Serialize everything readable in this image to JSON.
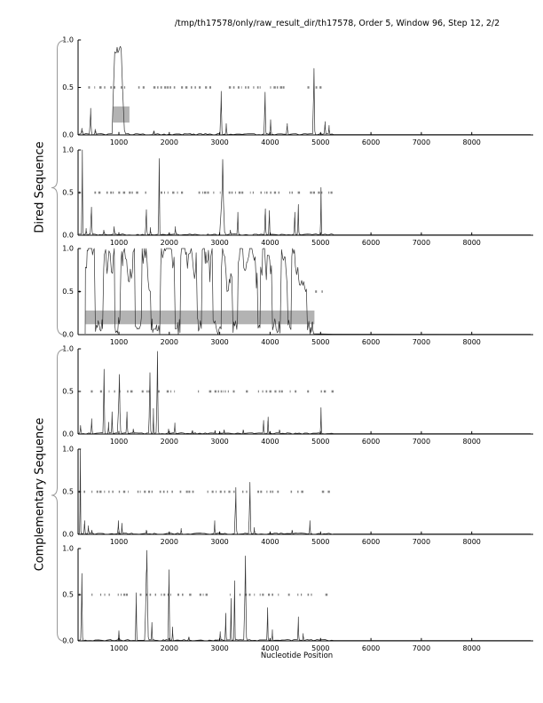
{
  "page": {
    "title": "/tmp/th17578/only/raw_result_dir/th17578, Order 5, Window 96, Step 12, 2/2"
  },
  "axes": {
    "xlabel": "Nucleotide Position",
    "x_ticks": [
      1000,
      2000,
      3000,
      4000,
      5000,
      6000,
      7000,
      8000
    ],
    "y_ticks": [
      "0.0",
      "0.5",
      "1.0"
    ]
  },
  "groups": [
    {
      "label": "Dired Sequence",
      "panels": [
        1,
        2,
        3
      ]
    },
    {
      "label": "Complementary Sequence",
      "panels": [
        4,
        5,
        6
      ]
    }
  ],
  "colors": {
    "line": "#333333",
    "marker_row": "#858585",
    "highlight_band": "#b3b3b3",
    "axis": "#000000",
    "brace": "#999999"
  },
  "chart_data": {
    "type": "line",
    "title": "/tmp/th17578/only/raw_result_dir/th17578, Order 5, Window 96, Step 12, 2/2",
    "xlabel": "Nucleotide Position",
    "xlim": [
      190,
      9220
    ],
    "ylim": [
      0,
      1
    ],
    "grid": false,
    "marker_row_y": 0.5,
    "marker_row_range": [
      205,
      5230
    ],
    "data_end": 5250,
    "panels": [
      {
        "name": "dired-1",
        "peaks": [
          [
            265,
            0.07,
            22
          ],
          [
            440,
            0.28,
            26
          ],
          [
            530,
            0.06,
            18
          ],
          [
            1000,
            0.95,
            135,
            "plateau"
          ],
          [
            1690,
            0.04,
            16
          ],
          [
            3030,
            0.46,
            26
          ],
          [
            3130,
            0.12,
            18
          ],
          [
            3900,
            0.45,
            24
          ],
          [
            4010,
            0.16,
            20
          ],
          [
            4340,
            0.12,
            20
          ],
          [
            4870,
            0.7,
            28
          ],
          [
            5090,
            0.14,
            18
          ],
          [
            5170,
            0.1,
            16
          ]
        ],
        "highlight": {
          "x0": 880,
          "x1": 1210,
          "y0": 0.13,
          "y1": 0.3
        }
      },
      {
        "name": "dired-2",
        "peaks": [
          [
            275,
            1.0,
            20
          ],
          [
            350,
            0.08,
            16
          ],
          [
            455,
            0.33,
            26
          ],
          [
            700,
            0.06,
            16
          ],
          [
            905,
            0.1,
            18
          ],
          [
            1545,
            0.3,
            24
          ],
          [
            1625,
            0.09,
            14
          ],
          [
            1800,
            0.9,
            22
          ],
          [
            2120,
            0.1,
            16
          ],
          [
            3060,
            0.89,
            60
          ],
          [
            3210,
            0.06,
            14
          ],
          [
            3360,
            0.27,
            20
          ],
          [
            3905,
            0.31,
            22
          ],
          [
            3985,
            0.29,
            18
          ],
          [
            4490,
            0.27,
            20
          ],
          [
            4560,
            0.36,
            20
          ],
          [
            5010,
            0.56,
            18
          ]
        ]
      },
      {
        "name": "dired-3",
        "dense_region": [
          330,
          4850
        ],
        "dense_range": [
          0,
          1
        ],
        "marker_gap": [
          335,
          4880
        ],
        "highlight": {
          "x0": 340,
          "x1": 4880,
          "y0": 0.12,
          "y1": 0.28
        }
      },
      {
        "name": "complementary-1",
        "peaks": [
          [
            240,
            0.1,
            18
          ],
          [
            460,
            0.18,
            20
          ],
          [
            705,
            0.76,
            24
          ],
          [
            795,
            0.14,
            14
          ],
          [
            865,
            0.26,
            18
          ],
          [
            1010,
            0.7,
            42
          ],
          [
            1160,
            0.26,
            22
          ],
          [
            1285,
            0.06,
            14
          ],
          [
            1615,
            0.72,
            28
          ],
          [
            1685,
            0.3,
            14
          ],
          [
            1765,
            0.97,
            28
          ],
          [
            1985,
            0.06,
            12
          ],
          [
            2110,
            0.13,
            18
          ],
          [
            2455,
            0.04,
            12
          ],
          [
            2905,
            0.04,
            12
          ],
          [
            3085,
            0.05,
            12
          ],
          [
            3465,
            0.05,
            12
          ],
          [
            3870,
            0.16,
            18
          ],
          [
            3960,
            0.2,
            16
          ],
          [
            4185,
            0.05,
            12
          ],
          [
            5010,
            0.31,
            16
          ]
        ]
      },
      {
        "name": "complementary-2",
        "peaks": [
          [
            235,
            1.0,
            16
          ],
          [
            320,
            0.16,
            18
          ],
          [
            395,
            0.1,
            16
          ],
          [
            460,
            0.05,
            12
          ],
          [
            990,
            0.16,
            18
          ],
          [
            1060,
            0.13,
            14
          ],
          [
            1545,
            0.05,
            12
          ],
          [
            2235,
            0.07,
            12
          ],
          [
            2900,
            0.16,
            16
          ],
          [
            3320,
            0.55,
            28
          ],
          [
            3600,
            0.61,
            28
          ],
          [
            3685,
            0.08,
            12
          ],
          [
            4435,
            0.05,
            12
          ],
          [
            4790,
            0.16,
            16
          ]
        ]
      },
      {
        "name": "complementary-3",
        "peaks": [
          [
            265,
            0.73,
            24
          ],
          [
            1000,
            0.11,
            18
          ],
          [
            1345,
            0.52,
            20
          ],
          [
            1555,
            0.98,
            45
          ],
          [
            1655,
            0.2,
            16
          ],
          [
            1995,
            0.77,
            24
          ],
          [
            2065,
            0.15,
            14
          ],
          [
            2385,
            0.04,
            12
          ],
          [
            3010,
            0.1,
            16
          ],
          [
            3120,
            0.3,
            20
          ],
          [
            3225,
            0.46,
            18
          ],
          [
            3295,
            0.65,
            20
          ],
          [
            3510,
            0.92,
            34
          ],
          [
            3950,
            0.36,
            18
          ],
          [
            4045,
            0.12,
            14
          ],
          [
            4560,
            0.26,
            18
          ],
          [
            4655,
            0.08,
            12
          ]
        ]
      }
    ]
  }
}
